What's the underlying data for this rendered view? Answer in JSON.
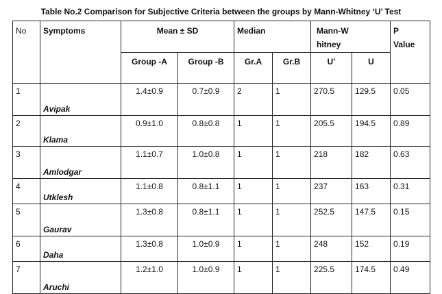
{
  "title": "Table No.2 Comparison for Subjective Criteria between the groups by Mann-Whitney ‘U’ Test",
  "headers": {
    "no": "No",
    "symptoms": "Symptoms",
    "mean_sd": "Mean ± SD",
    "median": "Median",
    "mann_whitney": "Mann-Whitney",
    "p_value": "P Value",
    "group_a": "Group -A",
    "group_b": "Group -B",
    "gr_a": "Gr.A",
    "gr_b": "Gr.B",
    "u_prime": "U’",
    "u": "U"
  },
  "rows": [
    {
      "no": "1",
      "symptom": "Avipak",
      "mean_a": "1.4±0.9",
      "mean_b": "0.7±0.9",
      "med_a": "2",
      "med_b": "1",
      "u_prime": "270.5",
      "u": "129.5",
      "p": "0.05"
    },
    {
      "no": "2",
      "symptom": "Klama",
      "mean_a": "0.9±1.0",
      "mean_b": "0.8±0.8",
      "med_a": "1",
      "med_b": "1",
      "u_prime": "205.5",
      "u": "194.5",
      "p": "0.89"
    },
    {
      "no": "3",
      "symptom": "Amlodgar",
      "mean_a": "1.1±0.7",
      "mean_b": "1.0±0.8",
      "med_a": "1",
      "med_b": "1",
      "u_prime": "218",
      "u": "182",
      "p": "0.63"
    },
    {
      "no": "4",
      "symptom": "Utklesh",
      "mean_a": "1.1±0.8",
      "mean_b": "0.8±1.1",
      "med_a": "1",
      "med_b": "1",
      "u_prime": "237",
      "u": "163",
      "p": "0.31"
    },
    {
      "no": "5",
      "symptom": "Gaurav",
      "mean_a": "1.3±0.8",
      "mean_b": "0.8±1.1",
      "med_a": "1",
      "med_b": "1",
      "u_prime": "252.5",
      "u": "147.5",
      "p": "0.15"
    },
    {
      "no": "6",
      "symptom": "Daha",
      "mean_a": "1.3±0.8",
      "mean_b": "1.0±0.9",
      "med_a": "1",
      "med_b": "1",
      "u_prime": "248",
      "u": "152",
      "p": "0.19"
    },
    {
      "no": "7",
      "symptom": "Aruchi",
      "mean_a": "1.2±1.0",
      "mean_b": "1.0±0.9",
      "med_a": "1",
      "med_b": "1",
      "u_prime": "225.5",
      "u": "174.5",
      "p": "0.49"
    }
  ]
}
